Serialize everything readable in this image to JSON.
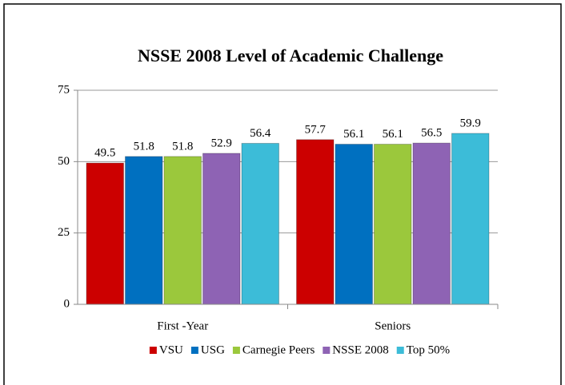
{
  "chart_data": {
    "type": "bar",
    "title": "NSSE 2008 Level of Academic Challenge",
    "categories": [
      "First -Year",
      "Seniors"
    ],
    "series": [
      {
        "name": "VSU",
        "color": "#cc0000",
        "values": [
          49.5,
          57.7
        ]
      },
      {
        "name": "USG",
        "color": "#0070c0",
        "values": [
          51.8,
          56.1
        ]
      },
      {
        "name": "Carnegie Peers",
        "color": "#9bc83c",
        "values": [
          51.8,
          56.1
        ]
      },
      {
        "name": "NSSE 2008",
        "color": "#8e63b4",
        "values": [
          52.9,
          56.5
        ]
      },
      {
        "name": "Top 50%",
        "color": "#3cbcd8",
        "values": [
          56.4,
          59.9
        ]
      }
    ],
    "ylim": [
      0,
      75
    ],
    "yticks": [
      0,
      25,
      50,
      75
    ],
    "grid": true,
    "legend": "bottom"
  }
}
